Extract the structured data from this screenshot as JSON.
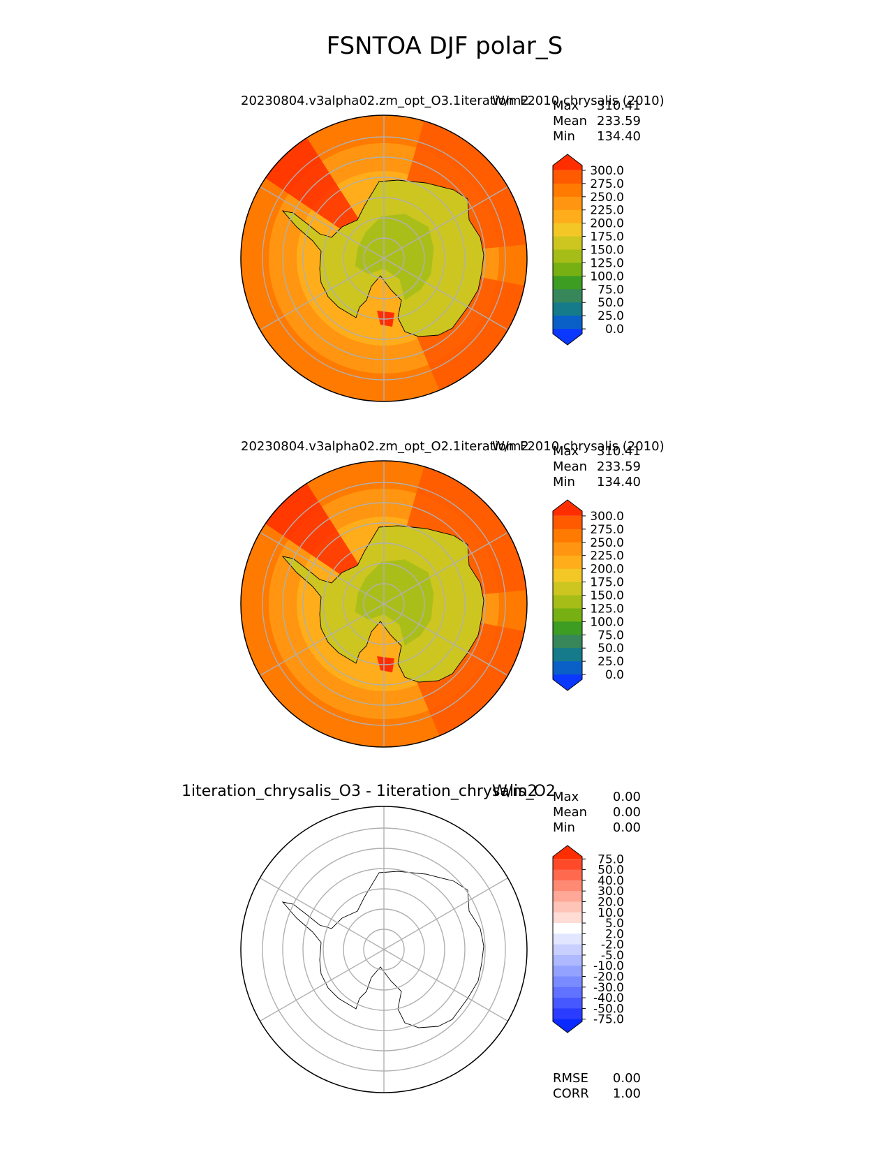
{
  "figure": {
    "title": "FSNTOA DJF polar_S"
  },
  "chart_data": [
    {
      "type": "heatmap",
      "projection": "south-polar-stereographic",
      "title_left": "20230804.v3alpha02.zm_opt_O3.1iteration",
      "title_center": "W/m2",
      "title_right": "F2010 chrysalis (2010)",
      "stats": [
        {
          "label": "Max",
          "value": "310.41"
        },
        {
          "label": "Mean",
          "value": "233.59"
        },
        {
          "label": "Min",
          "value": "134.40"
        }
      ],
      "colorbar": {
        "ticks": [
          "300.0",
          "275.0",
          "250.0",
          "225.0",
          "200.0",
          "175.0",
          "150.0",
          "125.0",
          "100.0",
          "75.0",
          "50.0",
          "25.0",
          "0.0"
        ],
        "colors": [
          "#ff2e00",
          "#ff5a00",
          "#ff7a00",
          "#ff9510",
          "#ffad1a",
          "#f3c826",
          "#cdc620",
          "#a6bd18",
          "#76b012",
          "#3d9c22",
          "#37875a",
          "#157b8a",
          "#0b60c8",
          "#0a38ff"
        ],
        "extend": "both"
      }
    },
    {
      "type": "heatmap",
      "projection": "south-polar-stereographic",
      "title_left": "20230804.v3alpha02.zm_opt_O2.1iteration",
      "title_center": "W/m2",
      "title_right": "F2010 chrysalis (2010)",
      "stats": [
        {
          "label": "Max",
          "value": "310.41"
        },
        {
          "label": "Mean",
          "value": "233.59"
        },
        {
          "label": "Min",
          "value": "134.40"
        }
      ],
      "colorbar": {
        "ticks": [
          "300.0",
          "275.0",
          "250.0",
          "225.0",
          "200.0",
          "175.0",
          "150.0",
          "125.0",
          "100.0",
          "75.0",
          "50.0",
          "25.0",
          "0.0"
        ],
        "colors": [
          "#ff2e00",
          "#ff5a00",
          "#ff7a00",
          "#ff9510",
          "#ffad1a",
          "#f3c826",
          "#cdc620",
          "#a6bd18",
          "#76b012",
          "#3d9c22",
          "#37875a",
          "#157b8a",
          "#0b60c8",
          "#0a38ff"
        ],
        "extend": "both"
      }
    },
    {
      "type": "heatmap",
      "projection": "south-polar-stereographic",
      "title_left": "1iteration_chrysalis_O3 - 1iteration_chrysalis_O2",
      "title_center": "W/m2",
      "title_right": "",
      "stats": [
        {
          "label": "Max",
          "value": "0.00"
        },
        {
          "label": "Mean",
          "value": "0.00"
        },
        {
          "label": "Min",
          "value": "0.00"
        }
      ],
      "colorbar": {
        "ticks": [
          "75.0",
          "50.0",
          "40.0",
          "30.0",
          "20.0",
          "10.0",
          "5.0",
          "2.0",
          "-2.0",
          "-5.0",
          "-10.0",
          "-20.0",
          "-30.0",
          "-40.0",
          "-50.0",
          "-75.0"
        ],
        "colors": [
          "#ff2e00",
          "#ff4a2a",
          "#ff6a4e",
          "#ff8a74",
          "#ffa898",
          "#ffc4b8",
          "#ffdcd6",
          "#ffffff",
          "#e2e6ff",
          "#c8d0ff",
          "#aeb9ff",
          "#94a2ff",
          "#7a8bff",
          "#6072ff",
          "#4658ff",
          "#2a3cff",
          "#0a2aff"
        ],
        "extend": "both"
      },
      "metrics": [
        {
          "label": "RMSE",
          "value": "0.00"
        },
        {
          "label": "CORR",
          "value": "1.00"
        }
      ]
    }
  ]
}
